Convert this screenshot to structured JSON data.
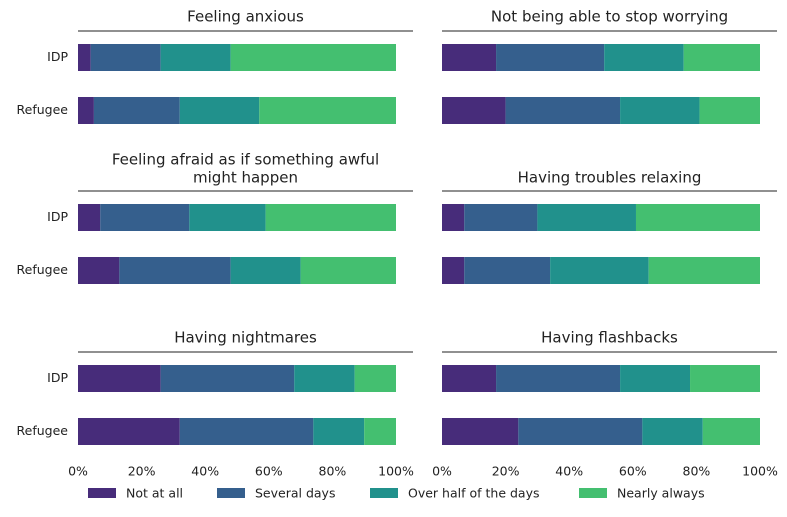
{
  "chart_data": {
    "type": "bar",
    "orientation": "horizontal",
    "stacked": true,
    "categories": [
      "IDP",
      "Refugee"
    ],
    "segments": [
      "Not at all",
      "Several days",
      "Over half of the days",
      "Nearly always"
    ],
    "x_ticks": [
      "0%",
      "20%",
      "40%",
      "60%",
      "80%",
      "100%"
    ],
    "xlim": [
      0,
      100
    ],
    "legend_position": "bottom",
    "colors": [
      "#472c7a",
      "#355f8d",
      "#21918c",
      "#44bf70"
    ],
    "panels": [
      {
        "title_lines": [
          "Feeling anxious"
        ],
        "values": {
          "IDP": [
            4,
            22,
            22,
            52
          ],
          "Refugee": [
            5,
            27,
            25,
            43
          ]
        }
      },
      {
        "title_lines": [
          "Not being able to stop worrying"
        ],
        "values": {
          "IDP": [
            17,
            34,
            25,
            24
          ],
          "Refugee": [
            20,
            36,
            25,
            19
          ]
        }
      },
      {
        "title_lines": [
          "Feeling afraid as if something awful",
          "might happen"
        ],
        "values": {
          "IDP": [
            7,
            28,
            24,
            41
          ],
          "Refugee": [
            13,
            35,
            22,
            30
          ]
        }
      },
      {
        "title_lines": [
          "Having troubles relaxing"
        ],
        "values": {
          "IDP": [
            7,
            23,
            31,
            39
          ],
          "Refugee": [
            7,
            27,
            31,
            35
          ]
        }
      },
      {
        "title_lines": [
          "Having nightmares"
        ],
        "values": {
          "IDP": [
            26,
            42,
            19,
            13
          ],
          "Refugee": [
            32,
            42,
            16,
            10
          ]
        }
      },
      {
        "title_lines": [
          "Having flashbacks"
        ],
        "values": {
          "IDP": [
            17,
            39,
            22,
            22
          ],
          "Refugee": [
            24,
            39,
            19,
            18
          ]
        }
      }
    ]
  }
}
